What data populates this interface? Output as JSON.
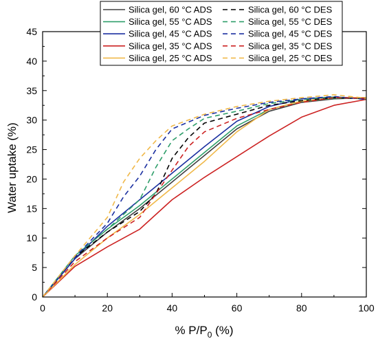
{
  "chart_data": {
    "type": "line",
    "title": "",
    "xlabel": {
      "prefix": "% P/P",
      "subscript": "0",
      "suffix": " (%)"
    },
    "ylabel": "Water uptake (%)",
    "xlim": [
      0,
      100
    ],
    "ylim": [
      0,
      45
    ],
    "xticks": [
      0,
      20,
      40,
      60,
      80,
      100
    ],
    "yticks": [
      0,
      5,
      10,
      15,
      20,
      25,
      30,
      35,
      40,
      45
    ],
    "grid": false,
    "legend_position": "top-right",
    "series": [
      {
        "name": "Silica gel, 60 °C ADS",
        "color": "#404040",
        "dash": "solid",
        "x": [
          0,
          10,
          20,
          30,
          40,
          50,
          60,
          70,
          80,
          90,
          100
        ],
        "y": [
          0,
          6.5,
          11.0,
          15.0,
          19.5,
          24.0,
          28.5,
          31.5,
          33.0,
          33.6,
          33.8
        ]
      },
      {
        "name": "Silica gel, 55 °C ADS",
        "color": "#2e9e6a",
        "dash": "solid",
        "x": [
          0,
          10,
          20,
          30,
          40,
          50,
          60,
          70,
          80,
          90,
          100
        ],
        "y": [
          0,
          7.0,
          11.5,
          15.5,
          20.0,
          24.5,
          29.0,
          31.8,
          33.2,
          33.7,
          33.8
        ]
      },
      {
        "name": "Silica gel, 45 °C ADS",
        "color": "#1a2fa0",
        "dash": "solid",
        "x": [
          0,
          10,
          20,
          30,
          40,
          50,
          60,
          70,
          80,
          90,
          100
        ],
        "y": [
          0,
          6.5,
          12.0,
          16.5,
          21.0,
          25.5,
          29.8,
          32.3,
          33.6,
          33.9,
          33.7
        ]
      },
      {
        "name": "Silica gel, 35 °C ADS",
        "color": "#cc2222",
        "dash": "solid",
        "x": [
          0,
          10,
          20,
          30,
          40,
          50,
          60,
          70,
          80,
          90,
          100
        ],
        "y": [
          0,
          5.2,
          8.5,
          11.5,
          16.5,
          20.3,
          23.8,
          27.3,
          30.5,
          32.5,
          33.5
        ]
      },
      {
        "name": "Silica gel, 25 °C ADS",
        "color": "#f0b848",
        "dash": "solid",
        "x": [
          0,
          10,
          20,
          30,
          40,
          50,
          60,
          70,
          80,
          90,
          100
        ],
        "y": [
          0,
          5.5,
          10.0,
          14.0,
          18.5,
          23.0,
          28.0,
          31.8,
          33.2,
          33.8,
          33.8
        ]
      },
      {
        "name": "Silica gel, 60 °C DES",
        "color": "#000000",
        "dash": "dashed",
        "x": [
          0,
          10,
          20,
          30,
          35,
          40,
          45,
          50,
          60,
          70,
          80,
          90,
          100
        ],
        "y": [
          0,
          6.8,
          11.0,
          14.5,
          17.5,
          23.5,
          27.0,
          29.5,
          31.0,
          32.5,
          33.3,
          33.8,
          33.6
        ]
      },
      {
        "name": "Silica gel, 55 °C DES",
        "color": "#2e9e6a",
        "dash": "dashed",
        "x": [
          0,
          10,
          20,
          30,
          35,
          40,
          45,
          50,
          60,
          70,
          80,
          90,
          100
        ],
        "y": [
          0,
          7.0,
          11.5,
          16.5,
          22.0,
          26.5,
          28.5,
          30.3,
          31.5,
          32.8,
          33.5,
          33.9,
          33.6
        ]
      },
      {
        "name": "Silica gel, 45 °C DES",
        "color": "#1a2fa0",
        "dash": "dashed",
        "x": [
          0,
          10,
          20,
          25,
          30,
          35,
          40,
          50,
          60,
          70,
          80,
          90,
          100
        ],
        "y": [
          0,
          6.8,
          12.5,
          17.0,
          20.5,
          25.0,
          28.5,
          30.8,
          32.0,
          33.0,
          33.6,
          34.0,
          33.5
        ]
      },
      {
        "name": "Silica gel, 35 °C DES",
        "color": "#cc2222",
        "dash": "dashed",
        "x": [
          0,
          10,
          20,
          30,
          35,
          40,
          45,
          50,
          60,
          70,
          80,
          90,
          100
        ],
        "y": [
          0,
          6.0,
          10.0,
          13.5,
          17.5,
          21.5,
          25.5,
          28.0,
          30.3,
          31.8,
          33.0,
          33.8,
          33.7
        ]
      },
      {
        "name": "Silica gel, 25 °C DES",
        "color": "#f0b848",
        "dash": "dashed",
        "x": [
          0,
          10,
          20,
          25,
          30,
          35,
          40,
          50,
          60,
          70,
          80,
          90,
          100
        ],
        "y": [
          0,
          7.0,
          13.5,
          19.5,
          23.5,
          26.5,
          29.0,
          31.0,
          32.3,
          33.2,
          33.8,
          34.3,
          33.7
        ]
      }
    ]
  }
}
